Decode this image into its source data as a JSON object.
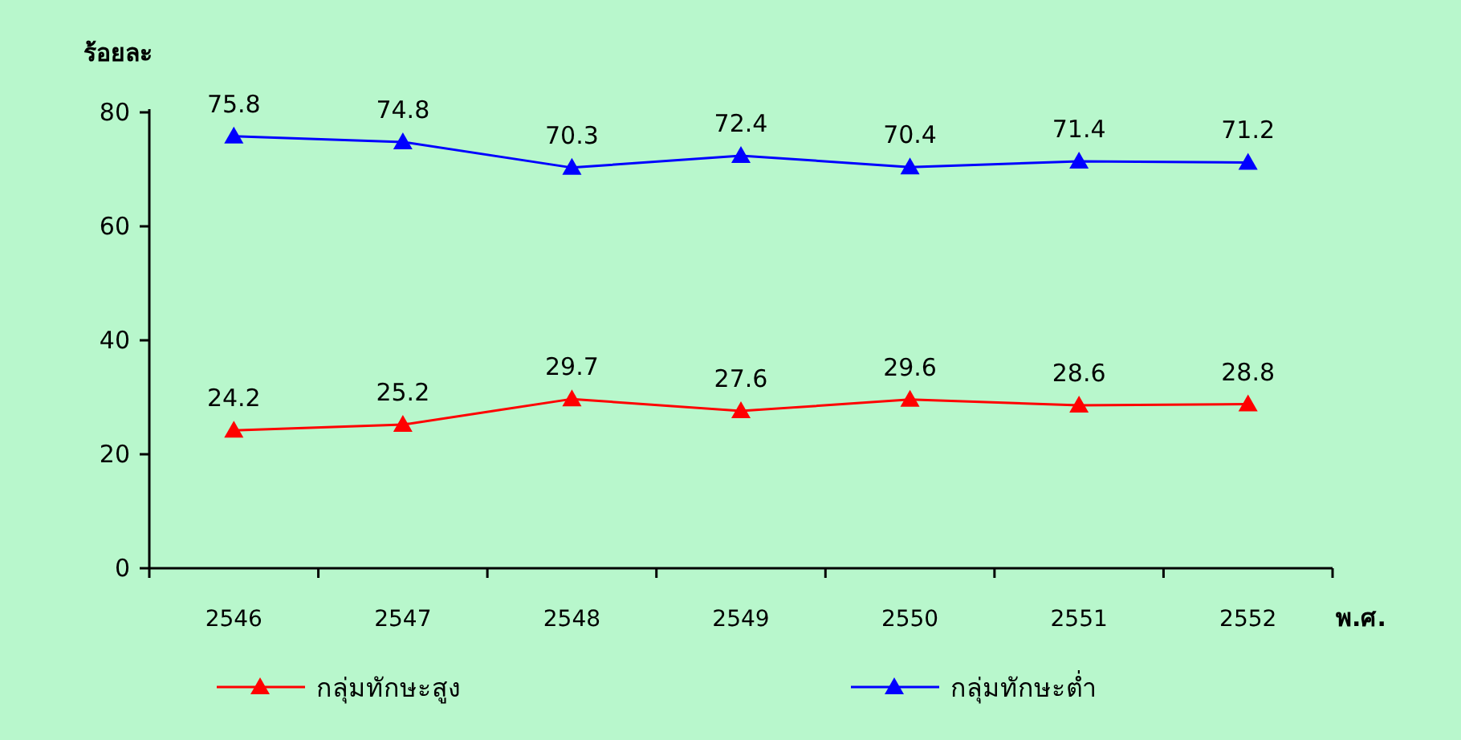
{
  "chart_data": {
    "type": "line",
    "ylabel": "ร้อยละ",
    "xlabel": "พ.ศ.",
    "categories": [
      "2546",
      "2547",
      "2548",
      "2549",
      "2550",
      "2551",
      "2552"
    ],
    "series": [
      {
        "name": "กลุ่มทักษะสูง",
        "color": "#ff0000",
        "values": [
          24.2,
          25.2,
          29.7,
          27.6,
          29.6,
          28.6,
          28.8
        ]
      },
      {
        "name": "กลุ่มทักษะต่ำ",
        "color": "#0000ff",
        "values": [
          75.8,
          74.8,
          70.3,
          72.4,
          70.4,
          71.4,
          71.2
        ]
      }
    ],
    "ylim": [
      0,
      80
    ],
    "yticks": [
      0,
      20,
      40,
      60,
      80
    ],
    "data_labels": true,
    "marker": "triangle",
    "line_style": "solid",
    "legend": "bottom",
    "grid": false
  }
}
